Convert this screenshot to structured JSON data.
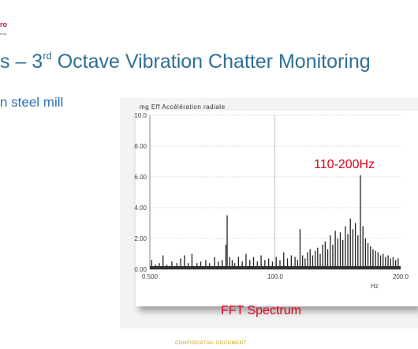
{
  "header": {
    "logo_text": "ro",
    "logo_sub": "roup"
  },
  "slide": {
    "title_pre": "s – 3",
    "title_sup": "rd",
    "title_post": " Octave Vibration Chatter Monitoring",
    "bullet": "n steel mill",
    "annotation": "110-200Hz",
    "caption": "FFT Spectrum",
    "footer": "CONFIDENTIAL DOCUMENT"
  },
  "colors": {
    "title": "#2f6f96",
    "annotation": "#e0001b",
    "footer": "#c8a000"
  },
  "chart_data": {
    "type": "line",
    "title": "mg Eff Accélération radiale",
    "xlabel": "Hz",
    "ylabel": "",
    "xlim": [
      0.5,
      200
    ],
    "ylim": [
      0,
      10
    ],
    "x_ticks": [
      "0.500",
      "100.0",
      "200.0"
    ],
    "y_ticks": [
      "0.00",
      "2.00",
      "4.00",
      "6.00",
      "8.00",
      "10.0"
    ],
    "grid": true,
    "series": [
      {
        "x": [
          2,
          5,
          8,
          11,
          14,
          18,
          22,
          25,
          28,
          31,
          34,
          38,
          41,
          45,
          48,
          52,
          55,
          58,
          61,
          62,
          64,
          66,
          68,
          71,
          74,
          77,
          80,
          83,
          86,
          89,
          92,
          95,
          98,
          101,
          104,
          107,
          110,
          113,
          116,
          118,
          120,
          122,
          124,
          126,
          128,
          130,
          132,
          134,
          136,
          138,
          140,
          142,
          144,
          146,
          148,
          150,
          152,
          154,
          156,
          158,
          160,
          162,
          164,
          166,
          168,
          170,
          172,
          174,
          176,
          178,
          180,
          182,
          184,
          186,
          188,
          190,
          192,
          194,
          196,
          198
        ],
        "y": [
          0.6,
          0.3,
          0.4,
          0.9,
          0.3,
          0.5,
          0.4,
          0.7,
          0.9,
          0.4,
          1.0,
          0.4,
          0.5,
          0.6,
          0.4,
          0.8,
          0.5,
          0.6,
          1.6,
          3.5,
          0.8,
          0.6,
          0.4,
          0.8,
          0.5,
          1.0,
          0.6,
          0.8,
          0.5,
          0.9,
          0.6,
          0.7,
          0.5,
          0.8,
          0.6,
          1.1,
          0.7,
          0.9,
          0.8,
          0.6,
          2.6,
          0.9,
          0.7,
          1.1,
          1.3,
          0.9,
          1.2,
          1.4,
          1.0,
          1.6,
          1.8,
          1.3,
          2.2,
          1.6,
          2.5,
          2.0,
          2.4,
          1.9,
          2.8,
          2.3,
          3.3,
          2.6,
          3.0,
          2.2,
          6.1,
          2.8,
          2.0,
          1.7,
          1.5,
          1.3,
          1.2,
          1.1,
          0.9,
          1.0,
          0.8,
          0.9,
          0.7,
          0.8,
          0.6,
          0.7
        ]
      }
    ]
  }
}
